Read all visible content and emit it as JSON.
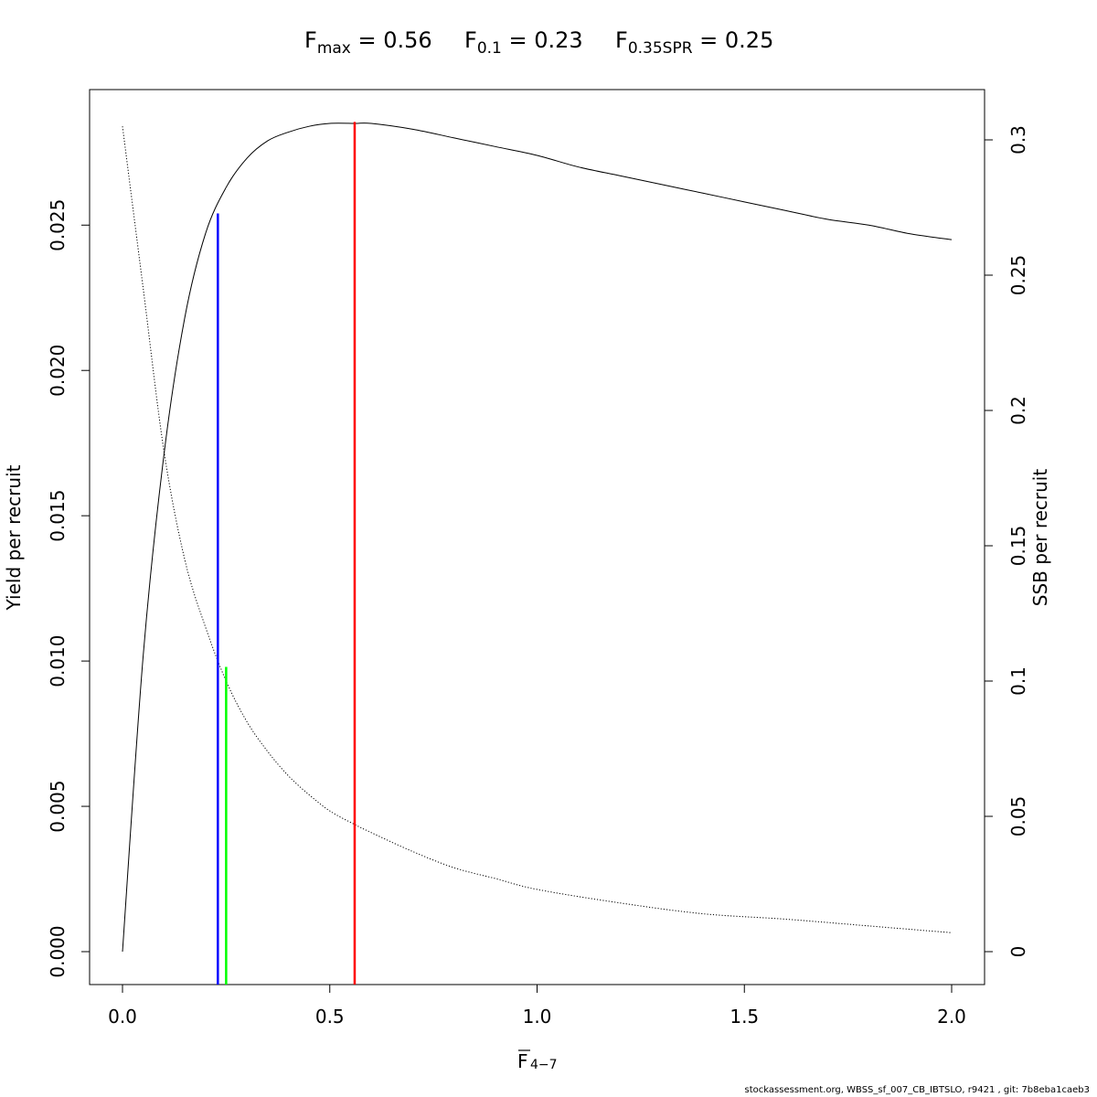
{
  "title": {
    "fmax": {
      "symbol": "F",
      "sub": "max",
      "text": " = 0.56"
    },
    "f01": {
      "symbol": "F",
      "sub": "0.1",
      "text": " = 0.23"
    },
    "f035": {
      "symbol": "F",
      "sub": "0.35SPR",
      "text": " = 0.25"
    }
  },
  "footer": "stockassessment.org, WBSS_sf_007_CB_IBTSLO, r9421 , git: 7b8eba1caeb3",
  "chart_data": {
    "type": "line",
    "xlabel": "F",
    "xlabel_sub": "4−7",
    "ylabel_left": "Yield per recruit",
    "ylabel_right": "SSB per recruit",
    "xlim": [
      0,
      2
    ],
    "ylim_left": [
      0,
      0.0285
    ],
    "ylim_right": [
      0,
      0.3
    ],
    "x_ticks": [
      0,
      0.5,
      1,
      1.5,
      2
    ],
    "x_tick_labels": [
      "0.0",
      "0.5",
      "1.0",
      "1.5",
      "2.0"
    ],
    "y_left_ticks": [
      0,
      0.005,
      0.01,
      0.015,
      0.02,
      0.025
    ],
    "y_left_tick_labels": [
      "0.000",
      "0.005",
      "0.010",
      "0.015",
      "0.020",
      "0.025"
    ],
    "y_right_ticks": [
      0,
      0.05,
      0.1,
      0.15,
      0.2,
      0.25,
      0.3
    ],
    "y_right_tick_labels": [
      "0",
      "0.05",
      "0.1",
      "0.15",
      "0.2",
      "0.25",
      "0.3"
    ],
    "series": [
      {
        "axis": "left",
        "style": "solid",
        "color": "#000000",
        "x": [
          0,
          0.05,
          0.1,
          0.15,
          0.2,
          0.25,
          0.3,
          0.35,
          0.4,
          0.45,
          0.5,
          0.56,
          0.6,
          0.7,
          0.8,
          0.9,
          1.0,
          1.1,
          1.2,
          1.3,
          1.4,
          1.5,
          1.6,
          1.7,
          1.8,
          1.9,
          2.0
        ],
        "y": [
          0,
          0.0102,
          0.0171,
          0.0218,
          0.0247,
          0.0263,
          0.0273,
          0.0279,
          0.0282,
          0.0284,
          0.0285,
          0.0285,
          0.0285,
          0.0283,
          0.028,
          0.0277,
          0.0274,
          0.027,
          0.0267,
          0.0264,
          0.0261,
          0.0258,
          0.0255,
          0.0252,
          0.025,
          0.0247,
          0.0245
        ]
      },
      {
        "axis": "right",
        "style": "dotted",
        "color": "#000000",
        "x": [
          0,
          0.05,
          0.1,
          0.15,
          0.2,
          0.25,
          0.3,
          0.35,
          0.4,
          0.45,
          0.5,
          0.56,
          0.6,
          0.7,
          0.8,
          0.9,
          1.0,
          1.2,
          1.4,
          1.6,
          1.8,
          2.0
        ],
        "y": [
          0.305,
          0.245,
          0.185,
          0.145,
          0.12,
          0.1,
          0.085,
          0.074,
          0.065,
          0.058,
          0.052,
          0.047,
          0.044,
          0.037,
          0.031,
          0.027,
          0.023,
          0.018,
          0.014,
          0.012,
          0.0095,
          0.007
        ]
      }
    ],
    "reference_lines": [
      {
        "name": "Fmax",
        "x": 0.56,
        "y_top": 0.02855,
        "color": "#ff0000"
      },
      {
        "name": "F0.1",
        "x": 0.23,
        "y_top": 0.0254,
        "color": "#0000ff"
      },
      {
        "name": "F0.35SPR",
        "x": 0.25,
        "y_top": 0.0098,
        "color": "#00ff00"
      }
    ],
    "grid": false,
    "legend": "none"
  }
}
